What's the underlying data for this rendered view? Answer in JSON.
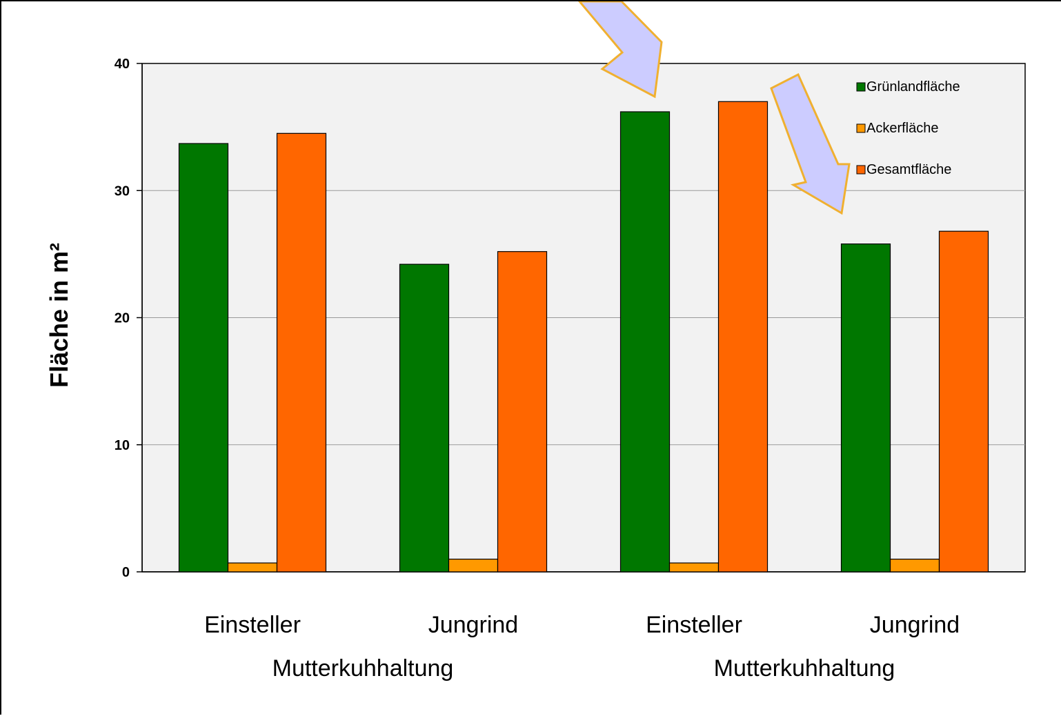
{
  "chart_data": {
    "type": "bar",
    "title": "",
    "xlabel": "",
    "ylabel": "Fläche in m²",
    "ylim": [
      0,
      40
    ],
    "yticks": [
      0,
      10,
      20,
      30,
      40
    ],
    "grid": true,
    "legend_position": "top-right",
    "categories": [
      "Einsteller",
      "Jungrind",
      "Einsteller",
      "Jungrind"
    ],
    "groups": [
      {
        "label": "Mutterkuhhaltung",
        "span": [
          0,
          1
        ]
      },
      {
        "label": "Mutterkuhhaltung",
        "span": [
          2,
          3
        ]
      }
    ],
    "series": [
      {
        "name": "Grünlandfläche",
        "color": "#007700",
        "values": [
          33.7,
          24.2,
          36.2,
          25.8
        ]
      },
      {
        "name": "Ackerfläche",
        "color": "#FF9900",
        "values": [
          0.7,
          1.0,
          0.7,
          1.0
        ]
      },
      {
        "name": "Gesamtfläche",
        "color": "#FF6600",
        "values": [
          34.5,
          25.2,
          37.0,
          26.8
        ]
      }
    ],
    "annotations": [
      {
        "type": "arrow",
        "color": "#CCCCFF",
        "points_to": "Grünlandfläche Einsteller (group 2)"
      },
      {
        "type": "arrow",
        "color": "#CCCCFF",
        "points_to": "Grünlandfläche Jungrind (group 2)"
      }
    ],
    "plot_background": "#F2F2F2"
  }
}
